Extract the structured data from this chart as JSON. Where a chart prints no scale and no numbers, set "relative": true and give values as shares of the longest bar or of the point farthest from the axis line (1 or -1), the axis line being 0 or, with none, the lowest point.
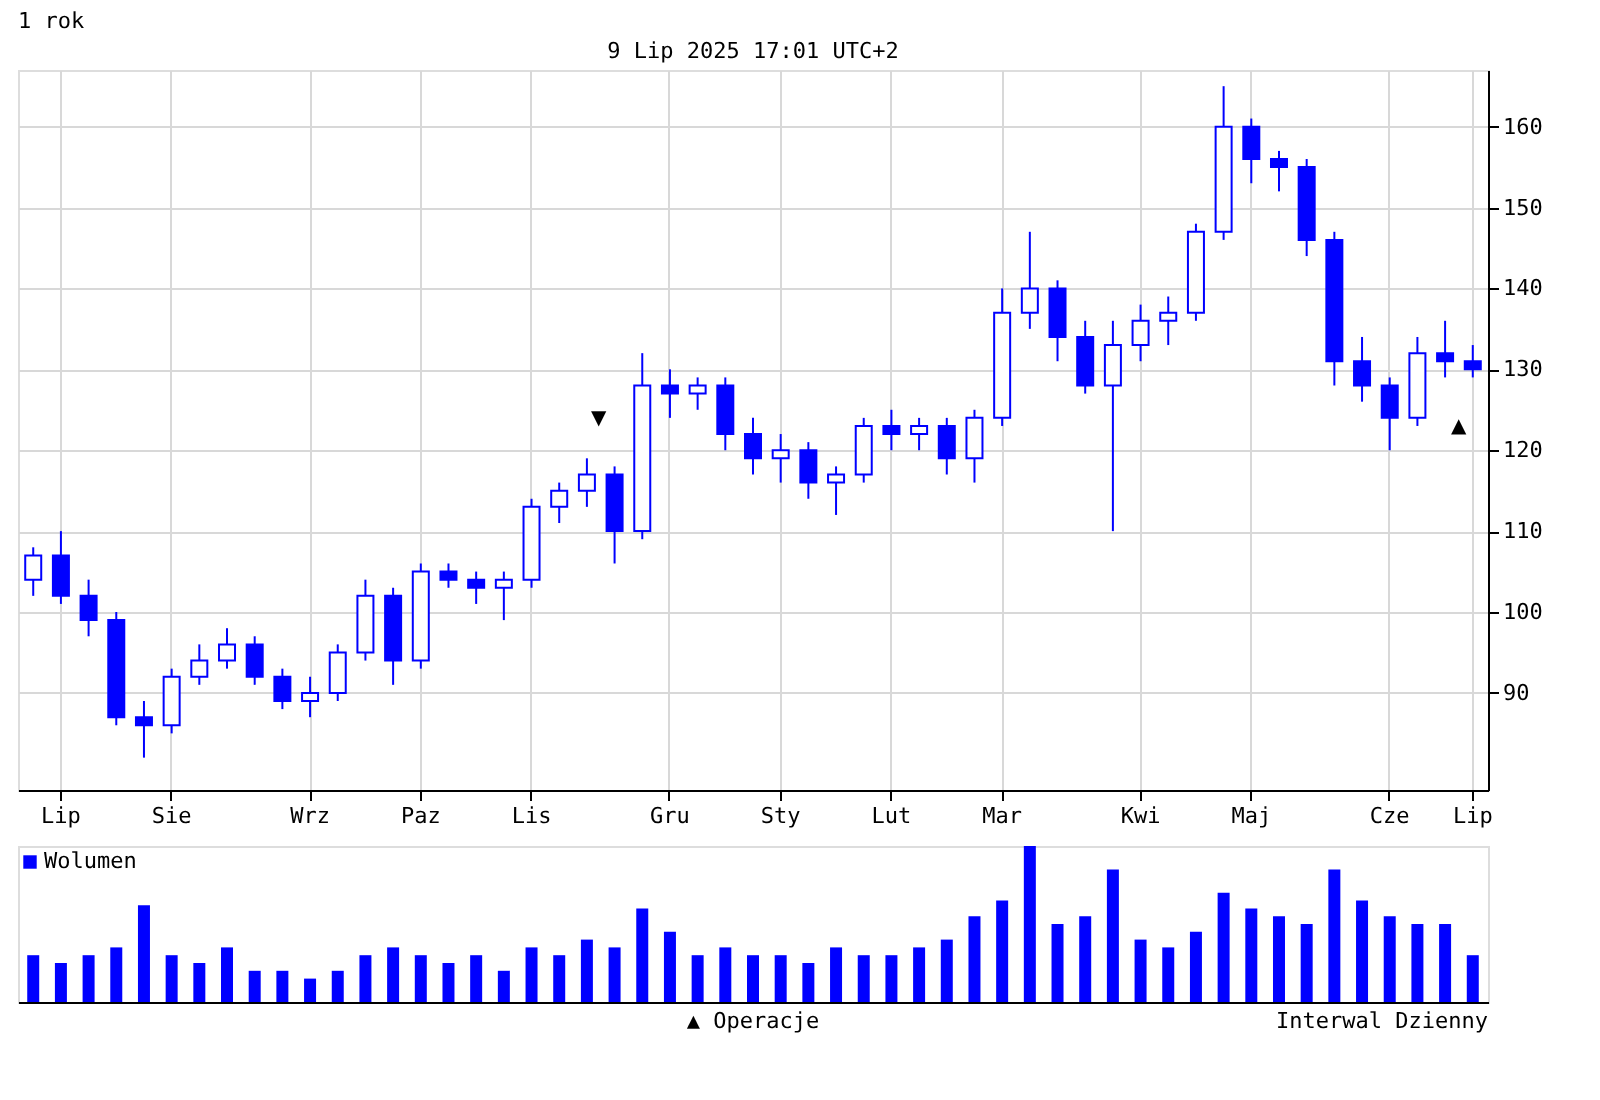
{
  "chart_data": [
    {
      "type": "candlestick",
      "title": "1 rok",
      "color": "#0000ff",
      "annotations": [
        "9 Lip 2025 17:01 UTC+2",
        "▼",
        "▲"
      ],
      "categories": [
        null,
        "Lip",
        null,
        null,
        null,
        "Sie",
        null,
        null,
        null,
        null,
        "Wrz",
        null,
        null,
        null,
        "Paz",
        null,
        null,
        null,
        "Lis",
        null,
        null,
        null,
        null,
        "Gru",
        null,
        null,
        null,
        "Sty",
        null,
        null,
        null,
        "Lut",
        null,
        null,
        null,
        "Mar",
        null,
        null,
        null,
        null,
        "Kwi",
        null,
        null,
        null,
        "Maj",
        null,
        null,
        null,
        null,
        "Cze",
        null,
        null,
        "Lip"
      ],
      "ohlc": [
        [
          104,
          108,
          102,
          107
        ],
        [
          107,
          110,
          101,
          102
        ],
        [
          102,
          104,
          97,
          99
        ],
        [
          99,
          100,
          86,
          87
        ],
        [
          87,
          89,
          82,
          86
        ],
        [
          86,
          93,
          85,
          92
        ],
        [
          92,
          96,
          91,
          94
        ],
        [
          94,
          98,
          93,
          96
        ],
        [
          96,
          97,
          91,
          92
        ],
        [
          92,
          93,
          88,
          89
        ],
        [
          89,
          92,
          87,
          90
        ],
        [
          90,
          96,
          89,
          95
        ],
        [
          95,
          104,
          94,
          102
        ],
        [
          102,
          103,
          91,
          94
        ],
        [
          94,
          106,
          93,
          105
        ],
        [
          105,
          106,
          103,
          104
        ],
        [
          104,
          105,
          101,
          103
        ],
        [
          103,
          105,
          99,
          104
        ],
        [
          104,
          114,
          103,
          113
        ],
        [
          113,
          116,
          111,
          115
        ],
        [
          115,
          119,
          113,
          117
        ],
        [
          117,
          118,
          106,
          110
        ],
        [
          110,
          132,
          109,
          128
        ],
        [
          128,
          130,
          124,
          127
        ],
        [
          127,
          129,
          125,
          128
        ],
        [
          128,
          129,
          120,
          122
        ],
        [
          122,
          124,
          117,
          119
        ],
        [
          119,
          122,
          116,
          120
        ],
        [
          120,
          121,
          114,
          116
        ],
        [
          116,
          118,
          112,
          117
        ],
        [
          117,
          124,
          116,
          123
        ],
        [
          123,
          125,
          120,
          122
        ],
        [
          122,
          124,
          120,
          123
        ],
        [
          123,
          124,
          117,
          119
        ],
        [
          119,
          125,
          116,
          124
        ],
        [
          124,
          140,
          123,
          137
        ],
        [
          137,
          147,
          135,
          140
        ],
        [
          140,
          141,
          131,
          134
        ],
        [
          134,
          136,
          127,
          128
        ],
        [
          128,
          136,
          110,
          133
        ],
        [
          133,
          138,
          131,
          136
        ],
        [
          136,
          139,
          133,
          137
        ],
        [
          137,
          148,
          136,
          147
        ],
        [
          147,
          165,
          146,
          160
        ],
        [
          160,
          161,
          153,
          156
        ],
        [
          156,
          157,
          152,
          155
        ],
        [
          155,
          156,
          144,
          146
        ],
        [
          146,
          147,
          128,
          131
        ],
        [
          131,
          134,
          126,
          128
        ],
        [
          128,
          129,
          120,
          124
        ],
        [
          124,
          134,
          123,
          132
        ],
        [
          132,
          136,
          129,
          131
        ],
        [
          131,
          133,
          129,
          130
        ]
      ],
      "ylim": [
        78,
        167
      ],
      "yticks": [
        90,
        100,
        110,
        120,
        130,
        140,
        150,
        160
      ],
      "grid": true
    },
    {
      "type": "bar",
      "relative": true,
      "legend": "top left",
      "annotations": [
        "▲ Operacje",
        "Interwal Dzienny"
      ],
      "categories": [
        null,
        null,
        null,
        null,
        null,
        null,
        null,
        null,
        null,
        null,
        null,
        null,
        null,
        null,
        null,
        null,
        null,
        null,
        null,
        null,
        null,
        null,
        null,
        null,
        null,
        null,
        null,
        null,
        null,
        null,
        null,
        null,
        null,
        null,
        null,
        null,
        null,
        null,
        null,
        null,
        null,
        null,
        null,
        null,
        null,
        null,
        null,
        null,
        null,
        null,
        null,
        null,
        null
      ],
      "series": [
        {
          "name": "Wolumen",
          "color": "#0000ff",
          "values": [
            0.3,
            0.25,
            0.3,
            0.35,
            0.62,
            0.3,
            0.25,
            0.35,
            0.2,
            0.2,
            0.15,
            0.2,
            0.3,
            0.35,
            0.3,
            0.25,
            0.3,
            0.2,
            0.35,
            0.3,
            0.4,
            0.35,
            0.6,
            0.45,
            0.3,
            0.35,
            0.3,
            0.3,
            0.25,
            0.35,
            0.3,
            0.3,
            0.35,
            0.4,
            0.55,
            0.65,
            1.0,
            0.5,
            0.55,
            0.85,
            0.4,
            0.35,
            0.45,
            0.7,
            0.6,
            0.55,
            0.5,
            0.85,
            0.65,
            0.55,
            0.5,
            0.5,
            0.3
          ]
        }
      ]
    }
  ]
}
